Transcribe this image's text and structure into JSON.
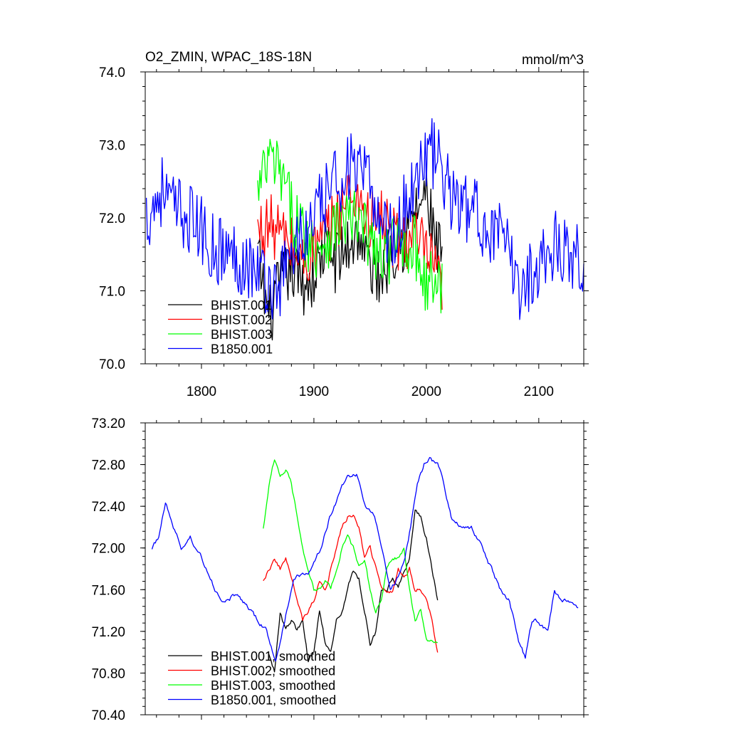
{
  "chart_data": [
    {
      "type": "line",
      "title": "O2_ZMIN, WPAC_18S-18N",
      "units": "mmol/m^3",
      "xlim": [
        1750,
        2140
      ],
      "ylim": [
        70.0,
        74.0
      ],
      "xticks": [
        1800,
        1900,
        2000,
        2100
      ],
      "yticks": [
        70.0,
        71.0,
        72.0,
        73.0,
        74.0
      ],
      "ytick_decimals": 1,
      "show_xtick_labels": true,
      "legend_position": "bottom-left",
      "series": [
        {
          "name": "BHIST.001",
          "color": "#000000",
          "x_start": 1850,
          "x_end": 2014,
          "anchors": [
            [
              1850,
              71.5
            ],
            [
              1860,
              70.6
            ],
            [
              1870,
              71.1
            ],
            [
              1880,
              71.3
            ],
            [
              1890,
              71.1
            ],
            [
              1900,
              71.2
            ],
            [
              1910,
              71.6
            ],
            [
              1920,
              71.4
            ],
            [
              1930,
              71.6
            ],
            [
              1940,
              71.8
            ],
            [
              1950,
              71.3
            ],
            [
              1960,
              71.2
            ],
            [
              1970,
              71.6
            ],
            [
              1980,
              71.7
            ],
            [
              1990,
              72.1
            ],
            [
              2000,
              72.3
            ],
            [
              2010,
              71.5
            ]
          ],
          "noise": 0.45
        },
        {
          "name": "BHIST.002",
          "color": "#ff0000",
          "x_start": 1850,
          "x_end": 2014,
          "anchors": [
            [
              1850,
              71.8
            ],
            [
              1860,
              71.9
            ],
            [
              1870,
              71.8
            ],
            [
              1880,
              71.6
            ],
            [
              1890,
              71.4
            ],
            [
              1900,
              71.6
            ],
            [
              1910,
              71.7
            ],
            [
              1920,
              72.0
            ],
            [
              1930,
              72.3
            ],
            [
              1940,
              72.3
            ],
            [
              1950,
              71.9
            ],
            [
              1960,
              72.0
            ],
            [
              1970,
              71.7
            ],
            [
              1980,
              71.7
            ],
            [
              1990,
              71.7
            ],
            [
              2000,
              71.5
            ],
            [
              2014,
              71.0
            ]
          ],
          "noise": 0.45
        },
        {
          "name": "BHIST.003",
          "color": "#00ff00",
          "x_start": 1850,
          "x_end": 2014,
          "anchors": [
            [
              1850,
              72.3
            ],
            [
              1860,
              72.8
            ],
            [
              1870,
              72.6
            ],
            [
              1880,
              72.1
            ],
            [
              1890,
              71.8
            ],
            [
              1900,
              71.6
            ],
            [
              1910,
              71.7
            ],
            [
              1920,
              71.9
            ],
            [
              1930,
              72.0
            ],
            [
              1940,
              71.9
            ],
            [
              1950,
              71.7
            ],
            [
              1960,
              71.4
            ],
            [
              1970,
              71.6
            ],
            [
              1980,
              71.7
            ],
            [
              1990,
              71.6
            ],
            [
              2000,
              71.1
            ],
            [
              2014,
              71.1
            ]
          ],
          "noise": 0.45
        },
        {
          "name": "B1850.001",
          "color": "#0000ff",
          "x_start": 1751,
          "x_end": 2140,
          "anchors": [
            [
              1751,
              72.0
            ],
            [
              1765,
              72.4
            ],
            [
              1775,
              72.1
            ],
            [
              1790,
              72.0
            ],
            [
              1800,
              71.8
            ],
            [
              1810,
              71.6
            ],
            [
              1825,
              71.5
            ],
            [
              1840,
              71.4
            ],
            [
              1855,
              71.2
            ],
            [
              1865,
              71.0
            ],
            [
              1875,
              71.3
            ],
            [
              1885,
              71.7
            ],
            [
              1895,
              71.8
            ],
            [
              1905,
              72.1
            ],
            [
              1915,
              72.4
            ],
            [
              1930,
              72.7
            ],
            [
              1940,
              72.6
            ],
            [
              1950,
              72.4
            ],
            [
              1960,
              72.0
            ],
            [
              1970,
              71.7
            ],
            [
              1985,
              72.3
            ],
            [
              1995,
              72.8
            ],
            [
              2005,
              72.9
            ],
            [
              2015,
              72.6
            ],
            [
              2025,
              72.2
            ],
            [
              2040,
              72.1
            ],
            [
              2055,
              71.9
            ],
            [
              2070,
              71.6
            ],
            [
              2085,
              71.0
            ],
            [
              2095,
              71.3
            ],
            [
              2105,
              71.5
            ],
            [
              2115,
              71.6
            ],
            [
              2125,
              71.6
            ],
            [
              2140,
              71.4
            ]
          ],
          "noise": 0.5
        }
      ]
    },
    {
      "type": "line",
      "title": "",
      "units": "",
      "xlim": [
        1750,
        2140
      ],
      "ylim": [
        70.4,
        73.2
      ],
      "xticks": [
        1800,
        1900,
        2000,
        2100
      ],
      "yticks": [
        70.4,
        70.8,
        71.2,
        71.6,
        72.0,
        72.4,
        72.8,
        73.2
      ],
      "ytick_decimals": 2,
      "show_xtick_labels": false,
      "legend_position": "bottom-left",
      "series": [
        {
          "name": "BHIST.001, smoothed",
          "color": "#000000",
          "x_start": 1860,
          "x_end": 2010,
          "anchors": [
            [
              1860,
              71.0
            ],
            [
              1865,
              70.8
            ],
            [
              1870,
              71.4
            ],
            [
              1875,
              71.2
            ],
            [
              1880,
              71.3
            ],
            [
              1885,
              71.2
            ],
            [
              1890,
              71.3
            ],
            [
              1895,
              70.9
            ],
            [
              1900,
              71.0
            ],
            [
              1905,
              71.4
            ],
            [
              1910,
              71.1
            ],
            [
              1915,
              71.0
            ],
            [
              1920,
              71.3
            ],
            [
              1925,
              71.4
            ],
            [
              1930,
              71.6
            ],
            [
              1935,
              71.8
            ],
            [
              1940,
              71.7
            ],
            [
              1945,
              71.4
            ],
            [
              1950,
              71.1
            ],
            [
              1955,
              71.2
            ],
            [
              1960,
              71.6
            ],
            [
              1965,
              71.6
            ],
            [
              1970,
              71.7
            ],
            [
              1975,
              71.6
            ],
            [
              1980,
              71.8
            ],
            [
              1985,
              71.9
            ],
            [
              1990,
              72.4
            ],
            [
              1995,
              72.3
            ],
            [
              2000,
              72.1
            ],
            [
              2005,
              71.8
            ],
            [
              2010,
              71.5
            ]
          ],
          "noise": 0.07
        },
        {
          "name": "BHIST.002, smoothed",
          "color": "#ff0000",
          "x_start": 1855,
          "x_end": 2010,
          "anchors": [
            [
              1855,
              71.7
            ],
            [
              1860,
              71.8
            ],
            [
              1865,
              71.9
            ],
            [
              1870,
              71.8
            ],
            [
              1875,
              71.9
            ],
            [
              1880,
              71.7
            ],
            [
              1885,
              71.5
            ],
            [
              1890,
              71.3
            ],
            [
              1895,
              71.4
            ],
            [
              1900,
              71.5
            ],
            [
              1905,
              71.7
            ],
            [
              1910,
              71.6
            ],
            [
              1915,
              71.8
            ],
            [
              1920,
              72.0
            ],
            [
              1925,
              72.2
            ],
            [
              1930,
              72.3
            ],
            [
              1935,
              72.3
            ],
            [
              1940,
              72.2
            ],
            [
              1945,
              71.9
            ],
            [
              1950,
              72.0
            ],
            [
              1955,
              71.8
            ],
            [
              1960,
              71.6
            ],
            [
              1965,
              71.6
            ],
            [
              1970,
              71.6
            ],
            [
              1975,
              71.8
            ],
            [
              1980,
              71.7
            ],
            [
              1985,
              71.8
            ],
            [
              1990,
              71.6
            ],
            [
              1995,
              71.6
            ],
            [
              2000,
              71.5
            ],
            [
              2005,
              71.3
            ],
            [
              2010,
              71.0
            ]
          ],
          "noise": 0.06
        },
        {
          "name": "BHIST.003, smoothed",
          "color": "#00ff00",
          "x_start": 1855,
          "x_end": 2010,
          "anchors": [
            [
              1855,
              72.2
            ],
            [
              1860,
              72.6
            ],
            [
              1865,
              72.85
            ],
            [
              1870,
              72.7
            ],
            [
              1875,
              72.75
            ],
            [
              1880,
              72.6
            ],
            [
              1885,
              72.3
            ],
            [
              1890,
              72.0
            ],
            [
              1895,
              71.8
            ],
            [
              1900,
              71.6
            ],
            [
              1905,
              71.6
            ],
            [
              1910,
              71.7
            ],
            [
              1915,
              71.6
            ],
            [
              1920,
              71.8
            ],
            [
              1925,
              72.0
            ],
            [
              1930,
              72.1
            ],
            [
              1935,
              72.0
            ],
            [
              1940,
              71.8
            ],
            [
              1945,
              71.9
            ],
            [
              1950,
              71.6
            ],
            [
              1955,
              71.4
            ],
            [
              1960,
              71.5
            ],
            [
              1965,
              71.8
            ],
            [
              1970,
              71.9
            ],
            [
              1975,
              71.9
            ],
            [
              1980,
              72.0
            ],
            [
              1985,
              71.6
            ],
            [
              1990,
              71.3
            ],
            [
              1995,
              71.4
            ],
            [
              2000,
              71.1
            ],
            [
              2005,
              71.1
            ],
            [
              2010,
              71.1
            ]
          ],
          "noise": 0.06
        },
        {
          "name": "B1850.001, smoothed",
          "color": "#0000ff",
          "x_start": 1756,
          "x_end": 2135,
          "anchors": [
            [
              1756,
              72.0
            ],
            [
              1762,
              72.1
            ],
            [
              1768,
              72.45
            ],
            [
              1775,
              72.2
            ],
            [
              1782,
              72.0
            ],
            [
              1790,
              72.1
            ],
            [
              1798,
              71.95
            ],
            [
              1805,
              71.8
            ],
            [
              1812,
              71.6
            ],
            [
              1820,
              71.5
            ],
            [
              1830,
              71.55
            ],
            [
              1840,
              71.45
            ],
            [
              1850,
              71.3
            ],
            [
              1858,
              71.2
            ],
            [
              1866,
              70.9
            ],
            [
              1874,
              71.3
            ],
            [
              1882,
              71.7
            ],
            [
              1890,
              71.75
            ],
            [
              1898,
              71.8
            ],
            [
              1906,
              72.0
            ],
            [
              1914,
              72.3
            ],
            [
              1922,
              72.5
            ],
            [
              1930,
              72.7
            ],
            [
              1938,
              72.7
            ],
            [
              1946,
              72.4
            ],
            [
              1954,
              72.3
            ],
            [
              1962,
              71.9
            ],
            [
              1968,
              71.6
            ],
            [
              1974,
              71.7
            ],
            [
              1980,
              71.85
            ],
            [
              1986,
              72.2
            ],
            [
              1992,
              72.6
            ],
            [
              1998,
              72.8
            ],
            [
              2004,
              72.85
            ],
            [
              2010,
              72.8
            ],
            [
              2016,
              72.6
            ],
            [
              2022,
              72.3
            ],
            [
              2030,
              72.2
            ],
            [
              2040,
              72.2
            ],
            [
              2050,
              72.0
            ],
            [
              2058,
              71.8
            ],
            [
              2066,
              71.6
            ],
            [
              2074,
              71.5
            ],
            [
              2082,
              71.1
            ],
            [
              2088,
              70.95
            ],
            [
              2094,
              71.3
            ],
            [
              2100,
              71.3
            ],
            [
              2108,
              71.2
            ],
            [
              2114,
              71.6
            ],
            [
              2120,
              71.5
            ],
            [
              2128,
              71.5
            ],
            [
              2135,
              71.4
            ]
          ],
          "noise": 0.06
        }
      ]
    }
  ]
}
